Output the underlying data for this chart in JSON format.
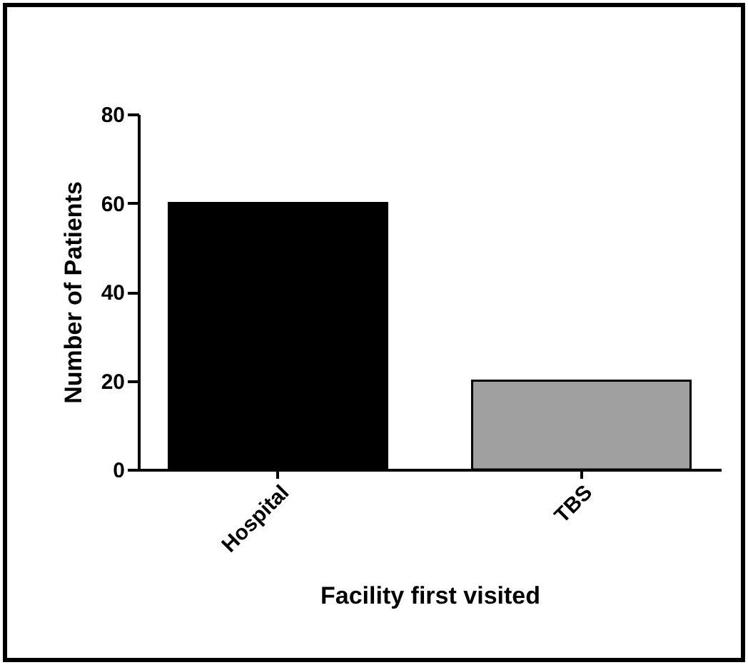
{
  "chart_data": {
    "type": "bar",
    "xlabel": "Facility first visited",
    "ylabel": "Number of Patients",
    "categories": [
      "Hospital",
      "TBS"
    ],
    "values": [
      60,
      20
    ],
    "colors": [
      "#000000",
      "#a0a0a0"
    ],
    "ylim": [
      0,
      80
    ],
    "yticks": [
      0,
      20,
      40,
      60,
      80
    ],
    "grid": false,
    "legend": false
  }
}
